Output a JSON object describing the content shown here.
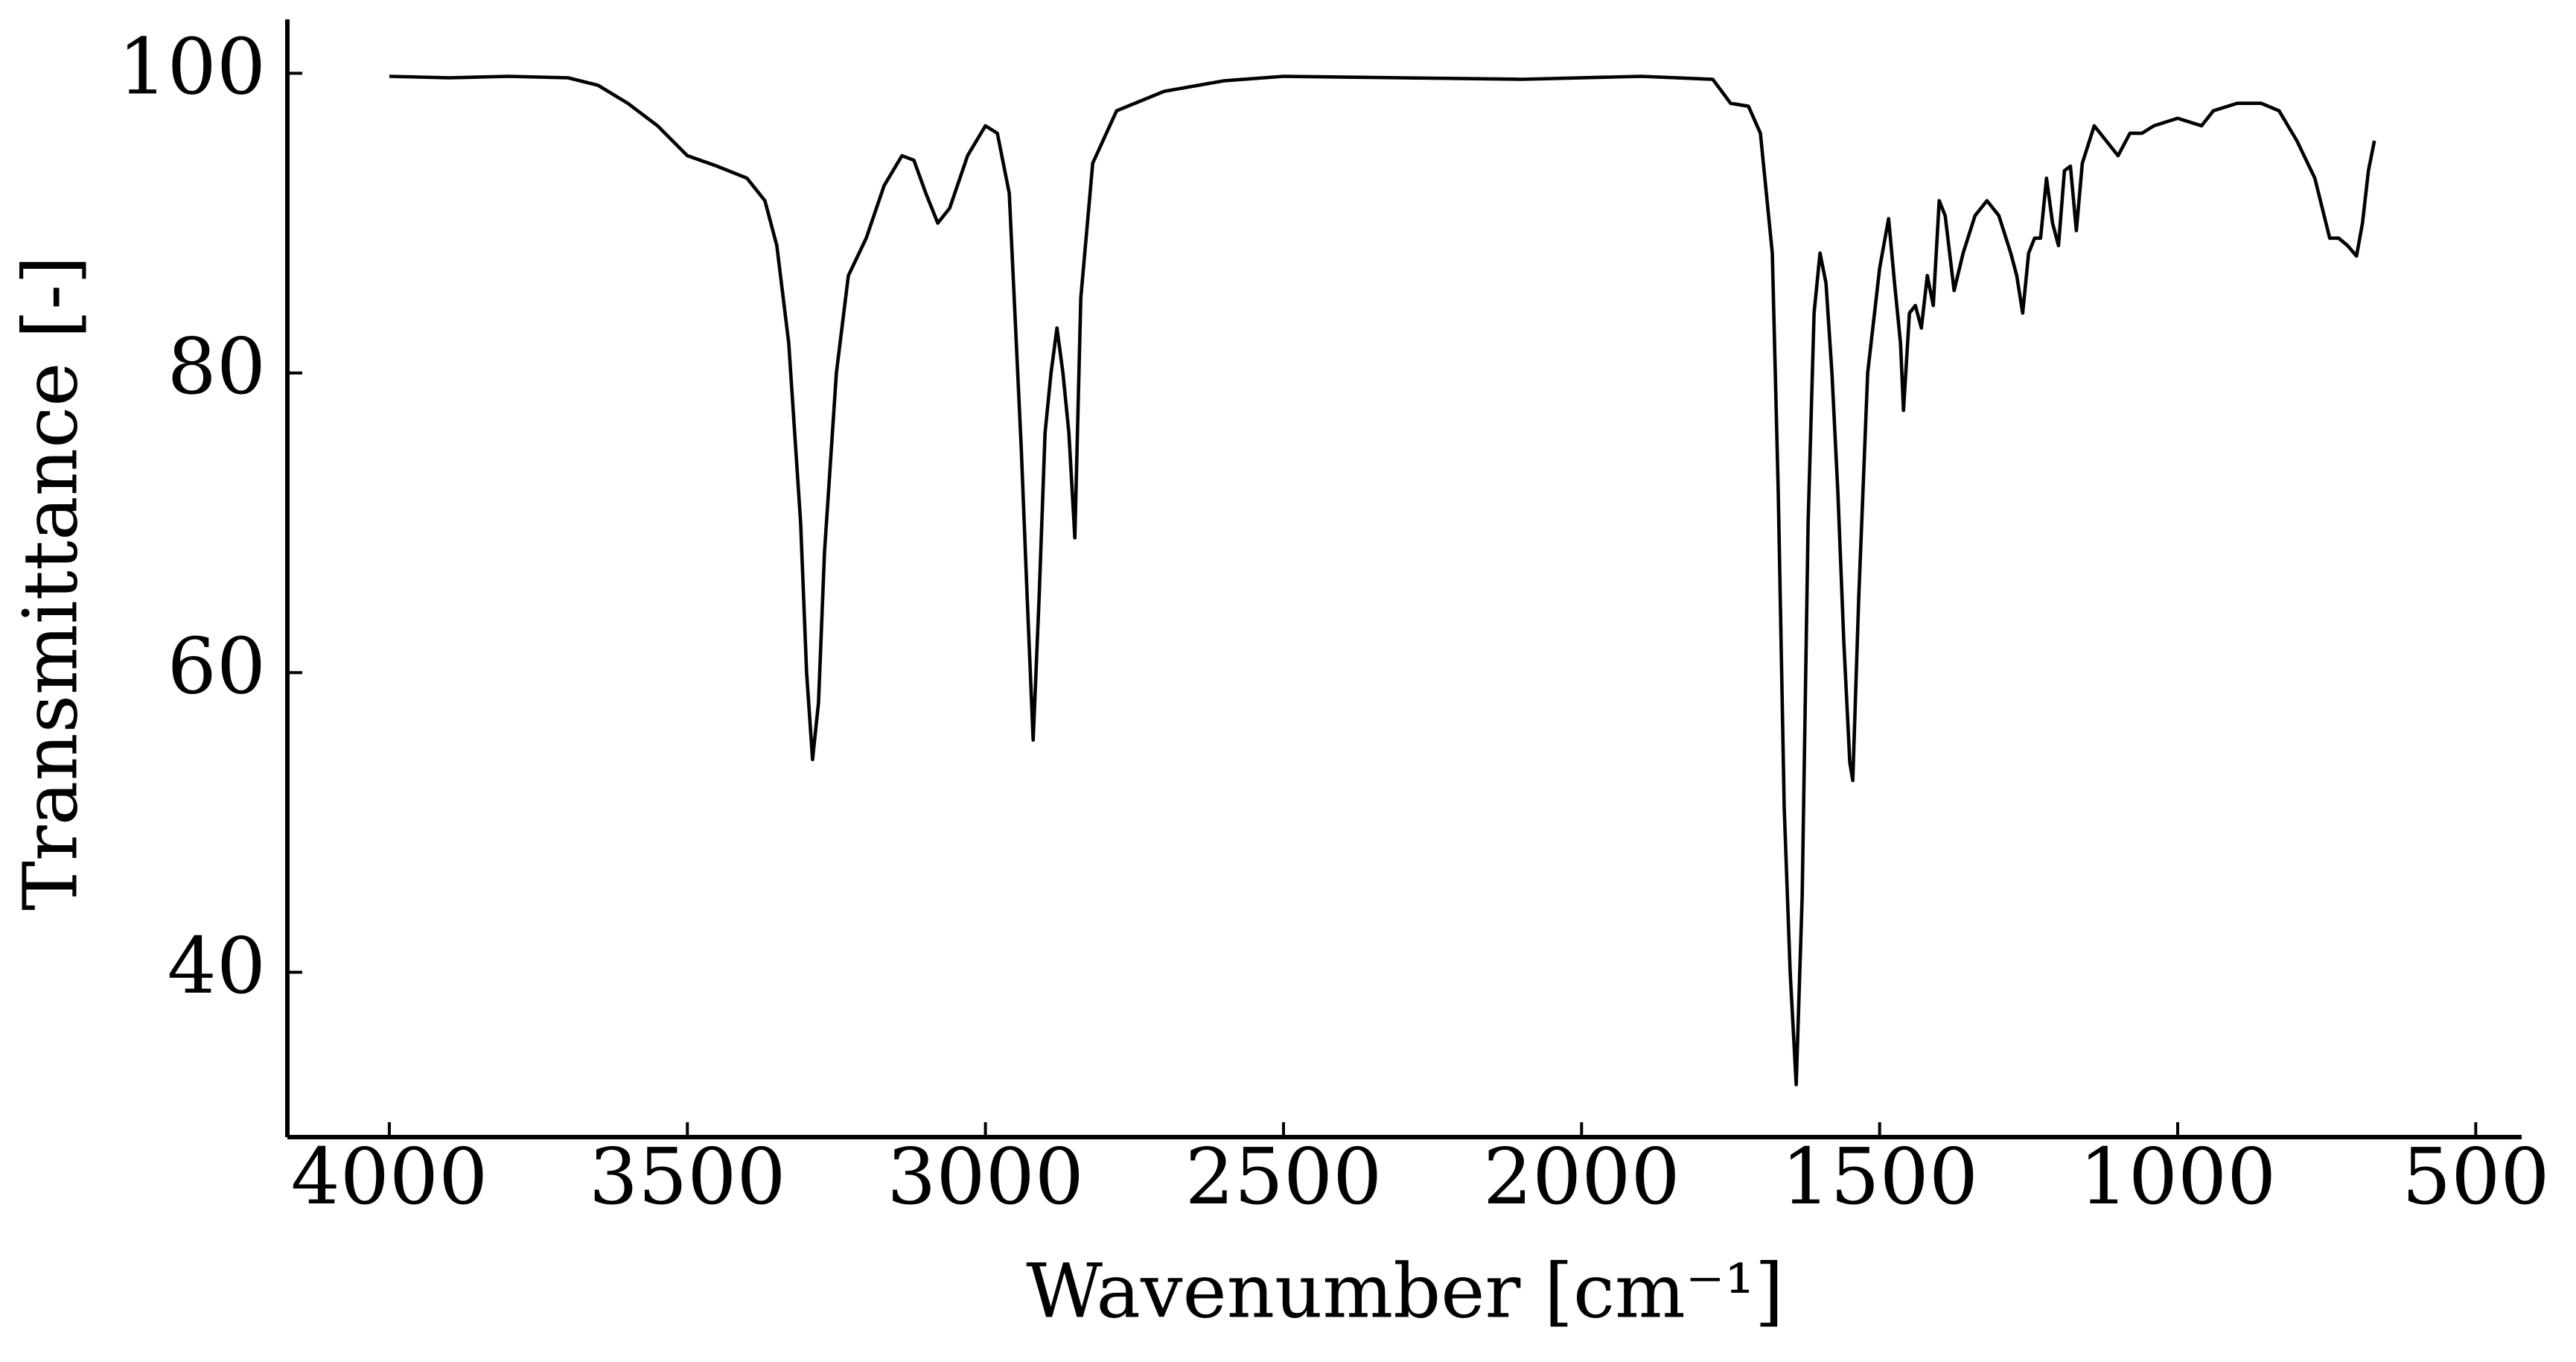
{
  "chart_data": {
    "type": "line",
    "xlabel": "Wavenumber [cm⁻¹]",
    "ylabel": "Transmittance [-]",
    "color": "#000000",
    "xlim": [
      4171,
      423
    ],
    "ylim": [
      29,
      103.6
    ],
    "xticks": [
      4000,
      3500,
      3000,
      2500,
      2000,
      1500,
      1000,
      500
    ],
    "yticks": [
      40,
      60,
      80,
      100
    ],
    "x": [
      4000,
      3900,
      3800,
      3700,
      3650,
      3600,
      3550,
      3500,
      3450,
      3400,
      3370,
      3350,
      3330,
      3310,
      3300,
      3290,
      3280,
      3270,
      3250,
      3230,
      3200,
      3170,
      3140,
      3120,
      3100,
      3080,
      3060,
      3030,
      3000,
      2980,
      2960,
      2940,
      2930,
      2920,
      2910,
      2900,
      2890,
      2880,
      2870,
      2860,
      2850,
      2840,
      2820,
      2780,
      2700,
      2600,
      2500,
      2300,
      2100,
      1900,
      1780,
      1750,
      1720,
      1700,
      1680,
      1670,
      1660,
      1650,
      1640,
      1630,
      1620,
      1610,
      1600,
      1590,
      1580,
      1570,
      1560,
      1550,
      1545,
      1535,
      1520,
      1500,
      1485,
      1475,
      1465,
      1460,
      1450,
      1440,
      1430,
      1420,
      1410,
      1400,
      1390,
      1375,
      1360,
      1340,
      1320,
      1300,
      1280,
      1270,
      1260,
      1250,
      1240,
      1230,
      1220,
      1210,
      1200,
      1190,
      1180,
      1170,
      1160,
      1140,
      1120,
      1100,
      1080,
      1060,
      1040,
      1000,
      960,
      940,
      900,
      860,
      830,
      800,
      770,
      745,
      730,
      715,
      700,
      690,
      680,
      670
    ],
    "values": [
      99.8,
      99.7,
      99.8,
      99.7,
      99.2,
      98.0,
      96.5,
      94.5,
      93.8,
      93.0,
      91.5,
      88.5,
      82,
      70,
      60,
      54.2,
      58,
      68,
      80,
      86.5,
      89,
      92.5,
      94.5,
      94.2,
      92,
      90,
      91,
      94.5,
      96.5,
      96,
      92,
      75,
      65,
      55.5,
      65,
      76,
      80,
      83,
      80,
      76,
      69,
      85,
      94,
      97.5,
      98.8,
      99.5,
      99.8,
      99.7,
      99.6,
      99.8,
      99.6,
      98,
      97.8,
      96,
      88,
      72,
      51,
      40,
      32.5,
      45,
      70,
      84,
      88,
      86,
      80,
      72,
      62,
      54,
      52.8,
      65,
      80,
      87,
      90.3,
      86,
      82,
      77.5,
      84,
      84.5,
      83,
      86.5,
      84.5,
      91.5,
      90.5,
      85.5,
      88,
      90.5,
      91.5,
      90.5,
      88,
      86.5,
      84,
      88,
      89,
      89,
      93,
      90,
      88.5,
      93.5,
      93.8,
      89.5,
      94,
      96.5,
      95.5,
      94.5,
      96,
      96,
      96.5,
      97,
      96.5,
      97.5,
      98,
      98,
      97.5,
      95.5,
      93,
      89,
      89,
      88.5,
      87.8,
      90,
      93.5,
      95.5
    ]
  }
}
